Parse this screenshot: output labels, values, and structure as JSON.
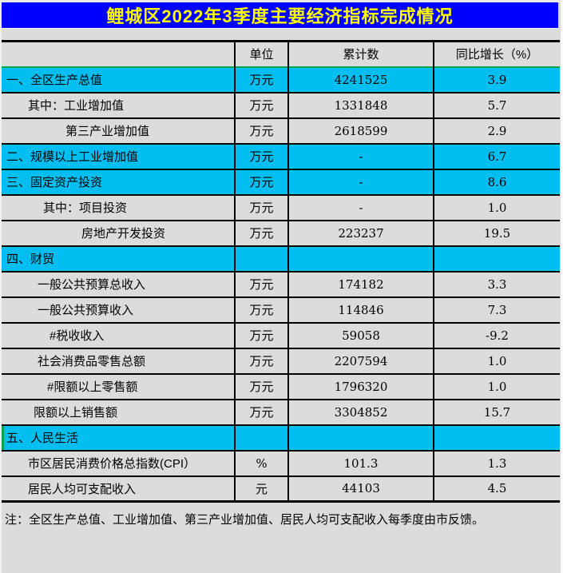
{
  "title": "鲤城区2022年3季度主要经济指标完成情况",
  "colors": {
    "title_bg": "#0000FF",
    "title_text": "#FFFF00",
    "section_row_bg": "#00BFF0",
    "normal_row_bg": "#DCDCDC",
    "grid_line": "#000000",
    "selection_green": "#00A550"
  },
  "table": {
    "columns": [
      "",
      "单位",
      "累计数",
      "同比增长（%）"
    ],
    "rows": [
      {
        "label": "一、全区生产总值",
        "unit": "万元",
        "value": "4241525",
        "growth": "3.9",
        "section": true,
        "indent": 6
      },
      {
        "label": "其中：工业增加值",
        "unit": "万元",
        "value": "1331848",
        "growth": "5.7",
        "section": false,
        "indent": 33
      },
      {
        "label": "第三产业增加值",
        "unit": "万元",
        "value": "2618599",
        "growth": "2.9",
        "section": false,
        "indent": 80
      },
      {
        "label": "二、规模以上工业增加值",
        "unit": "万元",
        "value": "-",
        "growth": "6.7",
        "section": true,
        "indent": 6
      },
      {
        "label": "三、固定资产投资",
        "unit": "万元",
        "value": "-",
        "growth": "8.6",
        "section": true,
        "indent": 6
      },
      {
        "label": "其中：项目投资",
        "unit": "万元",
        "value": "-",
        "growth": "1.0",
        "section": false,
        "indent": 52
      },
      {
        "label": "房地产开发投资",
        "unit": "万元",
        "value": "223237",
        "growth": "19.5",
        "section": false,
        "indent": 100
      },
      {
        "label": "四、财贸",
        "unit": "",
        "value": "",
        "growth": "",
        "section": true,
        "indent": 6
      },
      {
        "label": "一般公共预算总收入",
        "unit": "万元",
        "value": "174182",
        "growth": "3.3",
        "section": false,
        "indent": 45
      },
      {
        "label": "一般公共预算收入",
        "unit": "万元",
        "value": "114846",
        "growth": "7.3",
        "section": false,
        "indent": 45
      },
      {
        "label": "#税收收入",
        "unit": "万元",
        "value": "59058",
        "growth": "-9.2",
        "section": false,
        "indent": 60
      },
      {
        "label": "社会消费品零售总额",
        "unit": "万元",
        "value": "2207594",
        "growth": "1.0",
        "section": false,
        "indent": 45
      },
      {
        "label": "#限额以上零售额",
        "unit": "万元",
        "value": "1796320",
        "growth": "1.0",
        "section": false,
        "indent": 57
      },
      {
        "label": "限额以上销售额",
        "unit": "万元",
        "value": "3304852",
        "growth": "15.7",
        "section": false,
        "indent": 40
      },
      {
        "label": "五、人民生活",
        "unit": "",
        "value": "",
        "growth": "",
        "section": true,
        "indent": 6,
        "green_left": true
      },
      {
        "label": "市区居民消费价格总指数(CPI）",
        "unit": "%",
        "value": "101.3",
        "growth": "1.3",
        "section": false,
        "indent": 33
      },
      {
        "label": "居民人均可支配收入",
        "unit": "元",
        "value": "44103",
        "growth": "4.5",
        "section": false,
        "indent": 33
      }
    ]
  },
  "note": "注：全区生产总值、工业增加值、第三产业增加值、居民人均可支配收入每季度由市反馈。"
}
